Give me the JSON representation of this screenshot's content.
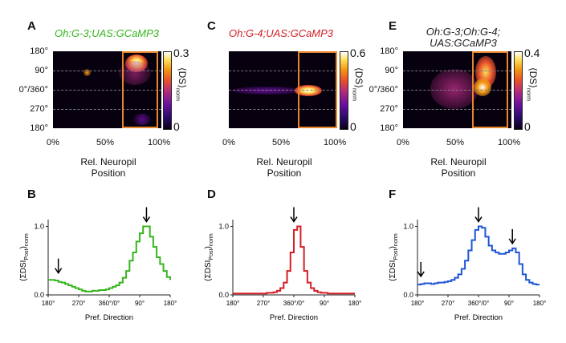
{
  "panels": {
    "A": {
      "letter": "A",
      "title": "Oh:G-3;UAS:GCaMP3",
      "cbar_max": "0.3",
      "cbar_min": "0"
    },
    "C": {
      "letter": "C",
      "title": "Oh:G-4;UAS:GCaMP3",
      "cbar_max": "0.6",
      "cbar_min": "0"
    },
    "E": {
      "letter": "E",
      "title_line1": "Oh:G-3;Oh:G-4;",
      "title_line2": "UAS:GCaMP3",
      "cbar_max": "0.4",
      "cbar_min": "0"
    },
    "B": {
      "letter": "B"
    },
    "D": {
      "letter": "D"
    },
    "F": {
      "letter": "F"
    }
  },
  "heatmap_axes": {
    "y_ticks": [
      "180°",
      "90°",
      "0°/360°",
      "270°",
      "180°"
    ],
    "x_ticks": [
      "0%",
      "50%",
      "100%"
    ],
    "x_title_line1": "Rel. Neuropil",
    "x_title_line2": "Position",
    "cbar_label": "⟨DS⟩",
    "cbar_sub": "norm"
  },
  "hist_axes": {
    "x_ticks": [
      "180°",
      "270°",
      "360°/0°",
      "90°",
      "180°"
    ],
    "y_ticks": [
      "0.0",
      "1.0"
    ],
    "x_title": "Pref. Direction",
    "y_title": "(ΣDSI",
    "y_sub1": "Post",
    "y_sub2": "norm"
  },
  "chart_data": [
    {
      "type": "line",
      "panel": "B",
      "color": "#37b51e",
      "xlabel": "Pref. Direction",
      "ylim": [
        0,
        1.1
      ],
      "x": [
        180,
        190,
        200,
        210,
        220,
        230,
        240,
        250,
        260,
        270,
        280,
        290,
        300,
        310,
        320,
        330,
        340,
        350,
        360,
        370,
        380,
        390,
        400,
        410,
        420,
        430,
        440,
        450,
        460,
        470,
        480,
        490,
        500,
        510,
        520,
        530,
        540
      ],
      "values": [
        0.22,
        0.22,
        0.21,
        0.19,
        0.18,
        0.16,
        0.14,
        0.12,
        0.1,
        0.08,
        0.06,
        0.05,
        0.05,
        0.06,
        0.06,
        0.07,
        0.07,
        0.08,
        0.1,
        0.12,
        0.14,
        0.18,
        0.25,
        0.35,
        0.5,
        0.62,
        0.78,
        0.9,
        1.0,
        1.0,
        0.85,
        0.7,
        0.55,
        0.45,
        0.35,
        0.26,
        0.22
      ]
    },
    {
      "type": "line",
      "panel": "D",
      "color": "#d31f26",
      "xlabel": "Pref. Direction",
      "ylim": [
        0,
        1.1
      ],
      "x": [
        180,
        190,
        200,
        210,
        220,
        230,
        240,
        250,
        260,
        270,
        280,
        290,
        300,
        310,
        320,
        330,
        340,
        350,
        360,
        370,
        380,
        390,
        400,
        410,
        420,
        430,
        440,
        450,
        460,
        470,
        480,
        490,
        500,
        510,
        520,
        530,
        540
      ],
      "values": [
        0.02,
        0.02,
        0.02,
        0.02,
        0.02,
        0.02,
        0.02,
        0.02,
        0.02,
        0.02,
        0.03,
        0.03,
        0.04,
        0.06,
        0.1,
        0.18,
        0.35,
        0.62,
        0.95,
        1.0,
        0.7,
        0.35,
        0.18,
        0.1,
        0.06,
        0.04,
        0.03,
        0.03,
        0.02,
        0.02,
        0.02,
        0.02,
        0.02,
        0.02,
        0.02,
        0.02,
        0.02
      ]
    },
    {
      "type": "line",
      "panel": "F",
      "color": "#1f56d6",
      "xlabel": "Pref. Direction",
      "ylim": [
        0,
        1.1
      ],
      "x": [
        180,
        190,
        200,
        210,
        220,
        230,
        240,
        250,
        260,
        270,
        280,
        290,
        300,
        310,
        320,
        330,
        340,
        350,
        360,
        370,
        380,
        390,
        400,
        410,
        420,
        430,
        440,
        450,
        460,
        470,
        480,
        490,
        500,
        510,
        520,
        530,
        540
      ],
      "values": [
        0.15,
        0.16,
        0.17,
        0.17,
        0.16,
        0.17,
        0.18,
        0.18,
        0.19,
        0.2,
        0.22,
        0.25,
        0.3,
        0.38,
        0.5,
        0.65,
        0.8,
        0.95,
        1.0,
        0.98,
        0.85,
        0.72,
        0.65,
        0.62,
        0.6,
        0.6,
        0.62,
        0.65,
        0.68,
        0.62,
        0.45,
        0.3,
        0.22,
        0.18,
        0.16,
        0.15,
        0.15
      ]
    }
  ]
}
